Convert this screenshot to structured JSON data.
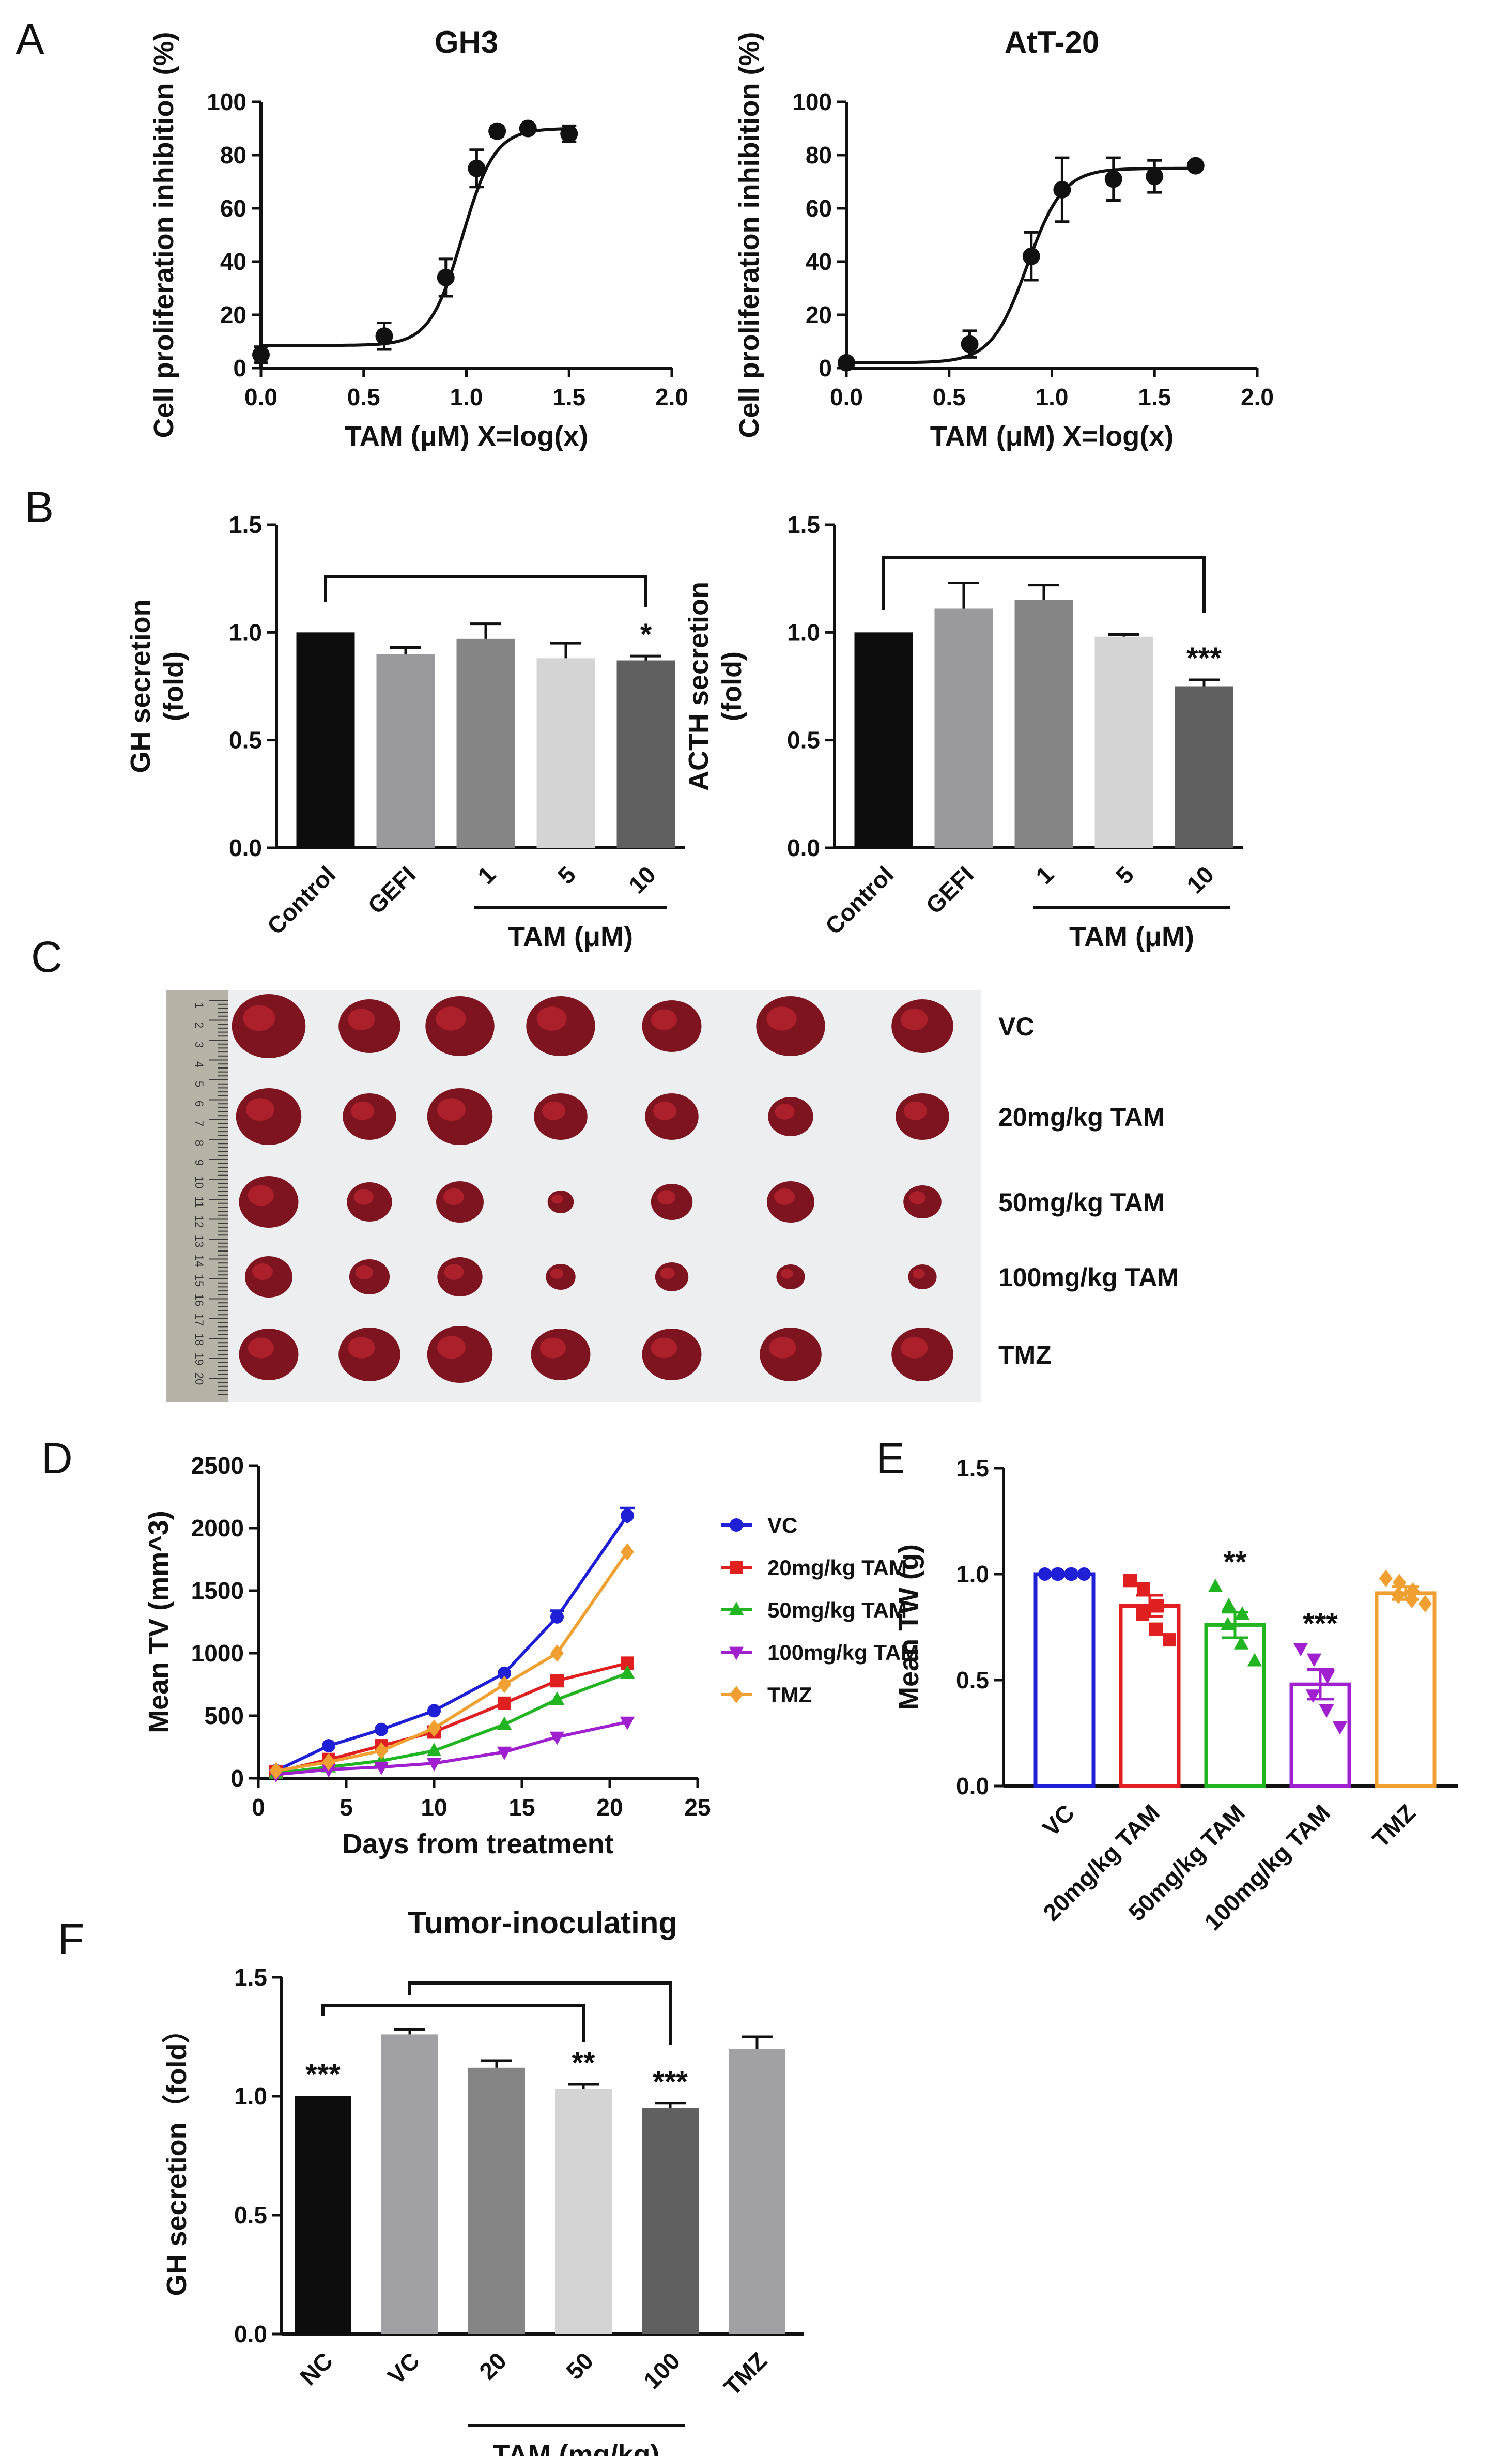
{
  "panels": {
    "A": "A",
    "B": "B",
    "C": "C",
    "D": "D",
    "E": "E",
    "F": "F"
  },
  "chart_data": [
    {
      "id": "A1",
      "type": "scatter",
      "title": "GH3",
      "xlabel": "TAM (μM) X=log(x)",
      "ylabel": "Cell proliferation inhibition (%)",
      "xlim": [
        0,
        2
      ],
      "ylim": [
        0,
        100
      ],
      "xticks": [
        "0.0",
        "0.5",
        "1.0",
        "1.5",
        "2.0"
      ],
      "yticks": [
        "0",
        "20",
        "40",
        "60",
        "80",
        "100"
      ],
      "x": [
        0.0,
        0.6,
        0.9,
        1.05,
        1.15,
        1.3,
        1.5
      ],
      "y": [
        5,
        12,
        34,
        75,
        89,
        90,
        88
      ],
      "err": [
        3,
        5,
        7,
        7,
        2,
        1,
        3
      ],
      "fit": {
        "bottom": 8.5,
        "top": 90,
        "logEC50": 0.98,
        "hill": 5.5
      }
    },
    {
      "id": "A2",
      "type": "scatter",
      "title": "AtT-20",
      "xlabel": "TAM (μM) X=log(x)",
      "ylabel": "Cell proliferation inhibition (%)",
      "xlim": [
        0,
        2
      ],
      "ylim": [
        0,
        100
      ],
      "xticks": [
        "0.0",
        "0.5",
        "1.0",
        "1.5",
        "2.0"
      ],
      "yticks": [
        "0",
        "20",
        "40",
        "60",
        "80",
        "100"
      ],
      "x": [
        0.0,
        0.6,
        0.9,
        1.05,
        1.3,
        1.5,
        1.7
      ],
      "y": [
        2,
        9,
        42,
        67,
        71,
        72,
        76
      ],
      "err": [
        1,
        5,
        9,
        12,
        8,
        6,
        1
      ],
      "fit": {
        "bottom": 2,
        "top": 75,
        "logEC50": 0.88,
        "hill": 5
      }
    },
    {
      "id": "B1",
      "type": "bar",
      "ylabel": "GH secretion\n(fold)",
      "categories": [
        "Control",
        "GEFI",
        "1",
        "5",
        "10"
      ],
      "values": [
        1.0,
        0.9,
        0.97,
        0.88,
        0.87
      ],
      "err": [
        0,
        0.03,
        0.07,
        0.07,
        0.02
      ],
      "colors": [
        "#0d0d0d",
        "#9a9a9e",
        "#858585",
        "#d4d4d4",
        "#606060"
      ],
      "ylim": [
        0,
        1.5
      ],
      "yticks": [
        "0.0",
        "0.5",
        "1.0",
        "1.5"
      ],
      "group_label": "TAM (μM)",
      "stars": [
        "",
        "",
        "",
        "",
        "*"
      ]
    },
    {
      "id": "B2",
      "type": "bar",
      "ylabel": "ACTH secretion\n(fold)",
      "categories": [
        "Control",
        "GEFI",
        "1",
        "5",
        "10"
      ],
      "values": [
        1.0,
        1.11,
        1.15,
        0.98,
        0.75
      ],
      "err": [
        0,
        0.12,
        0.07,
        0.01,
        0.03
      ],
      "colors": [
        "#0d0d0d",
        "#9a9a9e",
        "#858585",
        "#d4d4d4",
        "#606060"
      ],
      "ylim": [
        0,
        1.5
      ],
      "yticks": [
        "0.0",
        "0.5",
        "1.0",
        "1.5"
      ],
      "group_label": "TAM (μM)",
      "stars": [
        "",
        "",
        "",
        "",
        "***"
      ]
    },
    {
      "id": "D",
      "type": "line",
      "xlabel": "Days from treatment",
      "ylabel": "Mean TV (mm^3)",
      "xlim": [
        0,
        25
      ],
      "ylim": [
        0,
        2500
      ],
      "xticks": [
        "0",
        "5",
        "10",
        "15",
        "20",
        "25"
      ],
      "yticks": [
        "0",
        "500",
        "1000",
        "1500",
        "2000",
        "2500"
      ],
      "x": [
        1,
        4,
        7,
        10,
        14,
        17,
        21
      ],
      "series": [
        {
          "name": "VC",
          "color": "#1f1fd6",
          "marker": "circle",
          "values": [
            60,
            260,
            390,
            540,
            840,
            1290,
            2100
          ]
        },
        {
          "name": "20mg/kg TAM",
          "color": "#e02020",
          "marker": "square",
          "values": [
            50,
            150,
            260,
            370,
            600,
            780,
            920
          ]
        },
        {
          "name": "50mg/kg TAM",
          "color": "#22b522",
          "marker": "triangle-up",
          "values": [
            40,
            90,
            140,
            220,
            430,
            630,
            840
          ]
        },
        {
          "name": "100mg/kg TAM",
          "color": "#a020d0",
          "marker": "triangle-down",
          "values": [
            30,
            70,
            90,
            120,
            210,
            330,
            450
          ]
        },
        {
          "name": "TMZ",
          "color": "#f0a030",
          "marker": "diamond",
          "values": [
            60,
            130,
            220,
            400,
            750,
            1000,
            1810
          ]
        }
      ]
    },
    {
      "id": "E",
      "type": "bar",
      "ylabel": "Mean TW (g)",
      "categories": [
        "VC",
        "20mg/kg TAM",
        "50mg/kg TAM",
        "100mg/kg TAM",
        "TMZ"
      ],
      "values": [
        1.0,
        0.85,
        0.76,
        0.48,
        0.91
      ],
      "err": [
        0.005,
        0.05,
        0.06,
        0.07,
        0.03
      ],
      "colors": [
        "#1f1fd6",
        "#e02020",
        "#22b522",
        "#a020d0",
        "#f0a030"
      ],
      "points": [
        [
          1.0,
          1.0,
          1.0,
          1.0,
          1.0,
          1.0
        ],
        [
          0.97,
          0.93,
          0.85,
          0.81,
          0.74,
          0.69
        ],
        [
          0.94,
          0.85,
          0.81,
          0.76,
          0.67,
          0.59
        ],
        [
          0.65,
          0.6,
          0.52,
          0.43,
          0.36,
          0.28
        ],
        [
          0.98,
          0.96,
          0.92,
          0.9,
          0.88,
          0.86
        ]
      ],
      "markers": [
        "circle",
        "square",
        "triangle-up",
        "triangle-down",
        "diamond"
      ],
      "ylim": [
        0,
        1.5
      ],
      "yticks": [
        "0.0",
        "0.5",
        "1.0",
        "1.5"
      ],
      "stars": [
        "",
        "",
        "**",
        "***",
        ""
      ]
    },
    {
      "id": "F",
      "type": "bar",
      "title": "Tumor-inoculating",
      "ylabel": "GH secretion（fold）",
      "categories": [
        "NC",
        "VC",
        "20",
        "50",
        "100",
        "TMZ"
      ],
      "values": [
        1.0,
        1.26,
        1.12,
        1.03,
        0.95,
        1.2
      ],
      "err": [
        0,
        0.02,
        0.03,
        0.02,
        0.02,
        0.05
      ],
      "colors": [
        "#0d0d0d",
        "#a1a1a5",
        "#858585",
        "#d4d4d4",
        "#606060",
        "#a1a1a5"
      ],
      "ylim": [
        0,
        1.5
      ],
      "yticks": [
        "0.0",
        "0.5",
        "1.0",
        "1.5"
      ],
      "group_label": "TAM (mg/kg)",
      "stars": [
        "***",
        "",
        "",
        "**",
        "***",
        ""
      ]
    }
  ],
  "photo": {
    "row_labels": [
      "VC",
      "20mg/kg TAM",
      "50mg/kg TAM",
      "100mg/kg TAM",
      "TMZ"
    ],
    "ruler_marks": [
      "1",
      "2",
      "3",
      "4",
      "5",
      "6",
      "7",
      "8",
      "9",
      "10",
      "11",
      "12",
      "13",
      "14",
      "15",
      "16",
      "17",
      "18",
      "19",
      "20"
    ]
  }
}
